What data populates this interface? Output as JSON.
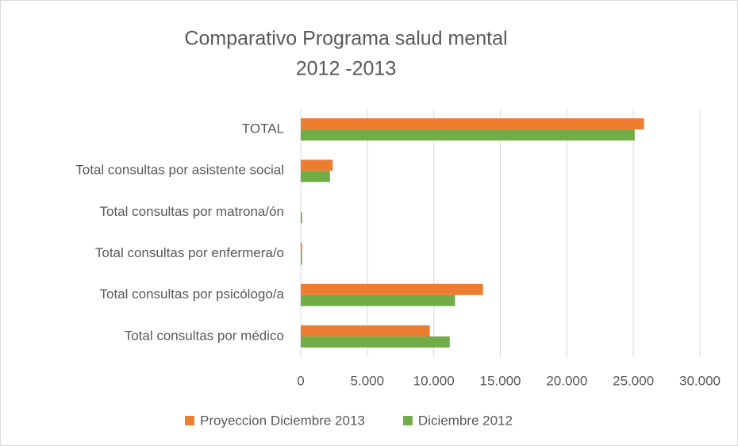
{
  "chart_data": {
    "type": "barh",
    "title": [
      "Comparativo Programa salud mental",
      "2012 -2013"
    ],
    "categories": [
      "TOTAL",
      "Total consultas por asistente social",
      "Total consultas por matrona/ón",
      "Total consultas por enfermera/o",
      "Total consultas  por psicólogo/a",
      "Total consultas por médico"
    ],
    "series": [
      {
        "name": "Proyeccion Diciembre 2013",
        "color": "#ed7d31",
        "values": [
          25800,
          2400,
          0,
          100,
          13700,
          9700
        ]
      },
      {
        "name": "Diciembre 2012",
        "color": "#70ad47",
        "values": [
          25100,
          2200,
          100,
          100,
          11600,
          11200
        ]
      }
    ],
    "xlim": [
      0,
      30000
    ],
    "xticks": [
      0,
      {
        "value": 5000,
        "label": "5.000"
      },
      {
        "value": 10000,
        "label": "10.000"
      },
      {
        "value": 15000,
        "label": "15.000"
      },
      {
        "value": 20000,
        "label": "20.000"
      },
      {
        "value": 25000,
        "label": "25.000"
      },
      {
        "value": 30000,
        "label": "30.000"
      }
    ],
    "grid": true,
    "legend": "bottom"
  }
}
